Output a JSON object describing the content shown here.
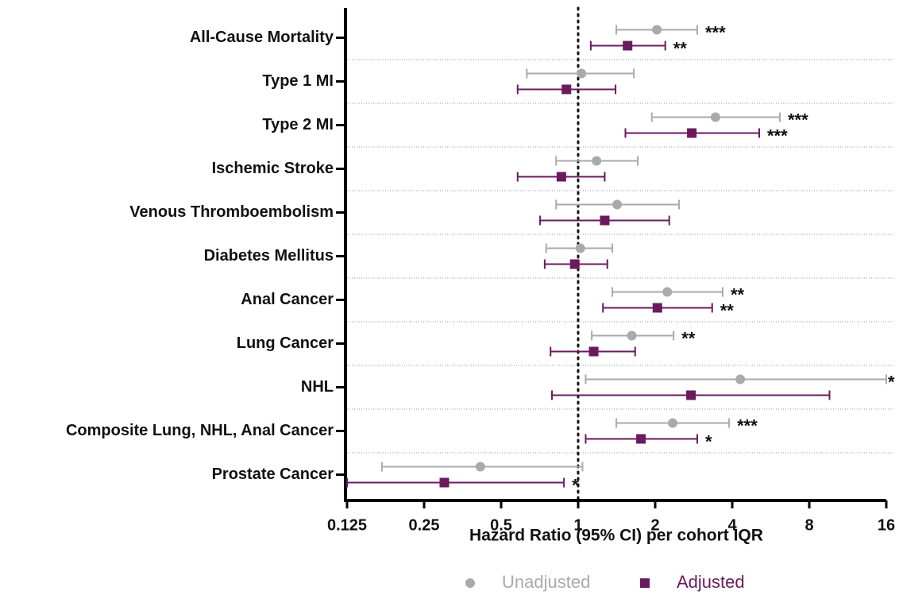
{
  "chart_data": {
    "type": "forest",
    "x_label": "Hazard Ratio (95% CI) per cohort IQR",
    "categories": [
      "All-Cause Mortality",
      "Type 1 MI",
      "Type 2 MI",
      "Ischemic Stroke",
      "Venous Thromboembolism",
      "Diabetes Mellitus",
      "Anal Cancer",
      "Lung Cancer",
      "NHL",
      "Composite Lung, NHL, Anal Cancer",
      "Prostate Cancer"
    ],
    "series": [
      {
        "name": "Unadjusted",
        "color": "#aaaaaa",
        "marker": "circle",
        "values": [
          2.03,
          1.03,
          3.44,
          1.18,
          1.42,
          1.02,
          2.23,
          1.62,
          4.3,
          2.34,
          0.415
        ],
        "lower": [
          1.41,
          0.63,
          1.94,
          0.82,
          0.82,
          0.75,
          1.36,
          1.13,
          1.07,
          1.41,
          0.171
        ],
        "upper": [
          2.92,
          1.65,
          6.14,
          1.71,
          2.48,
          1.36,
          3.67,
          2.36,
          16,
          3.89,
          1.04
        ],
        "stars": [
          "***",
          null,
          "***",
          null,
          null,
          null,
          "**",
          "**",
          "*",
          "***",
          null
        ]
      },
      {
        "name": "Adjusted",
        "color": "#6b1a5e",
        "marker": "square",
        "values": [
          1.56,
          0.9,
          2.78,
          0.86,
          1.27,
          0.97,
          2.04,
          1.15,
          2.76,
          1.76,
          0.3
        ],
        "lower": [
          1.12,
          0.58,
          1.53,
          0.58,
          0.71,
          0.74,
          1.25,
          0.78,
          0.79,
          1.07,
          0.125
        ],
        "upper": [
          2.19,
          1.4,
          5.1,
          1.27,
          2.27,
          1.3,
          3.34,
          1.67,
          9.6,
          2.92,
          0.88
        ],
        "stars": [
          "**",
          null,
          "***",
          null,
          null,
          null,
          "**",
          null,
          null,
          "*",
          "*"
        ]
      }
    ],
    "xscale": "log2",
    "xlim": [
      0.125,
      16
    ],
    "xticks": [
      0.125,
      0.25,
      0.5,
      1,
      2,
      4,
      8,
      16
    ],
    "reference_line": 1,
    "row_separators": true
  }
}
